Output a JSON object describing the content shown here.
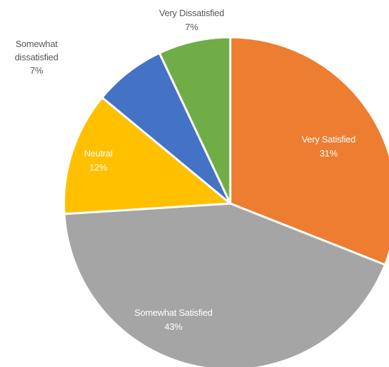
{
  "chart_data": {
    "type": "pie",
    "title": "",
    "colors": [
      "#ED7D31",
      "#A5A5A5",
      "#FFC000",
      "#4472C4",
      "#70AD47"
    ],
    "slices": [
      {
        "name": "Very Satisfied",
        "label": "31%",
        "value": 31,
        "color": "#ED7D31",
        "text_color": "light"
      },
      {
        "name": "Somewhat Satisfied",
        "label": "43%",
        "value": 43,
        "color": "#A5A5A5",
        "text_color": "light"
      },
      {
        "name": "Neutral",
        "label": "12%",
        "value": 12,
        "color": "#FFC000",
        "text_color": "light"
      },
      {
        "name": "Somewhat dissatisfied",
        "label": "7%",
        "value": 7,
        "color": "#4472C4",
        "text_color": "dark",
        "name_lines": [
          "Somewhat",
          "dissatisfied"
        ]
      },
      {
        "name": "Very Dissatisfied",
        "label": "7%",
        "value": 7,
        "color": "#70AD47",
        "text_color": "dark"
      }
    ]
  }
}
